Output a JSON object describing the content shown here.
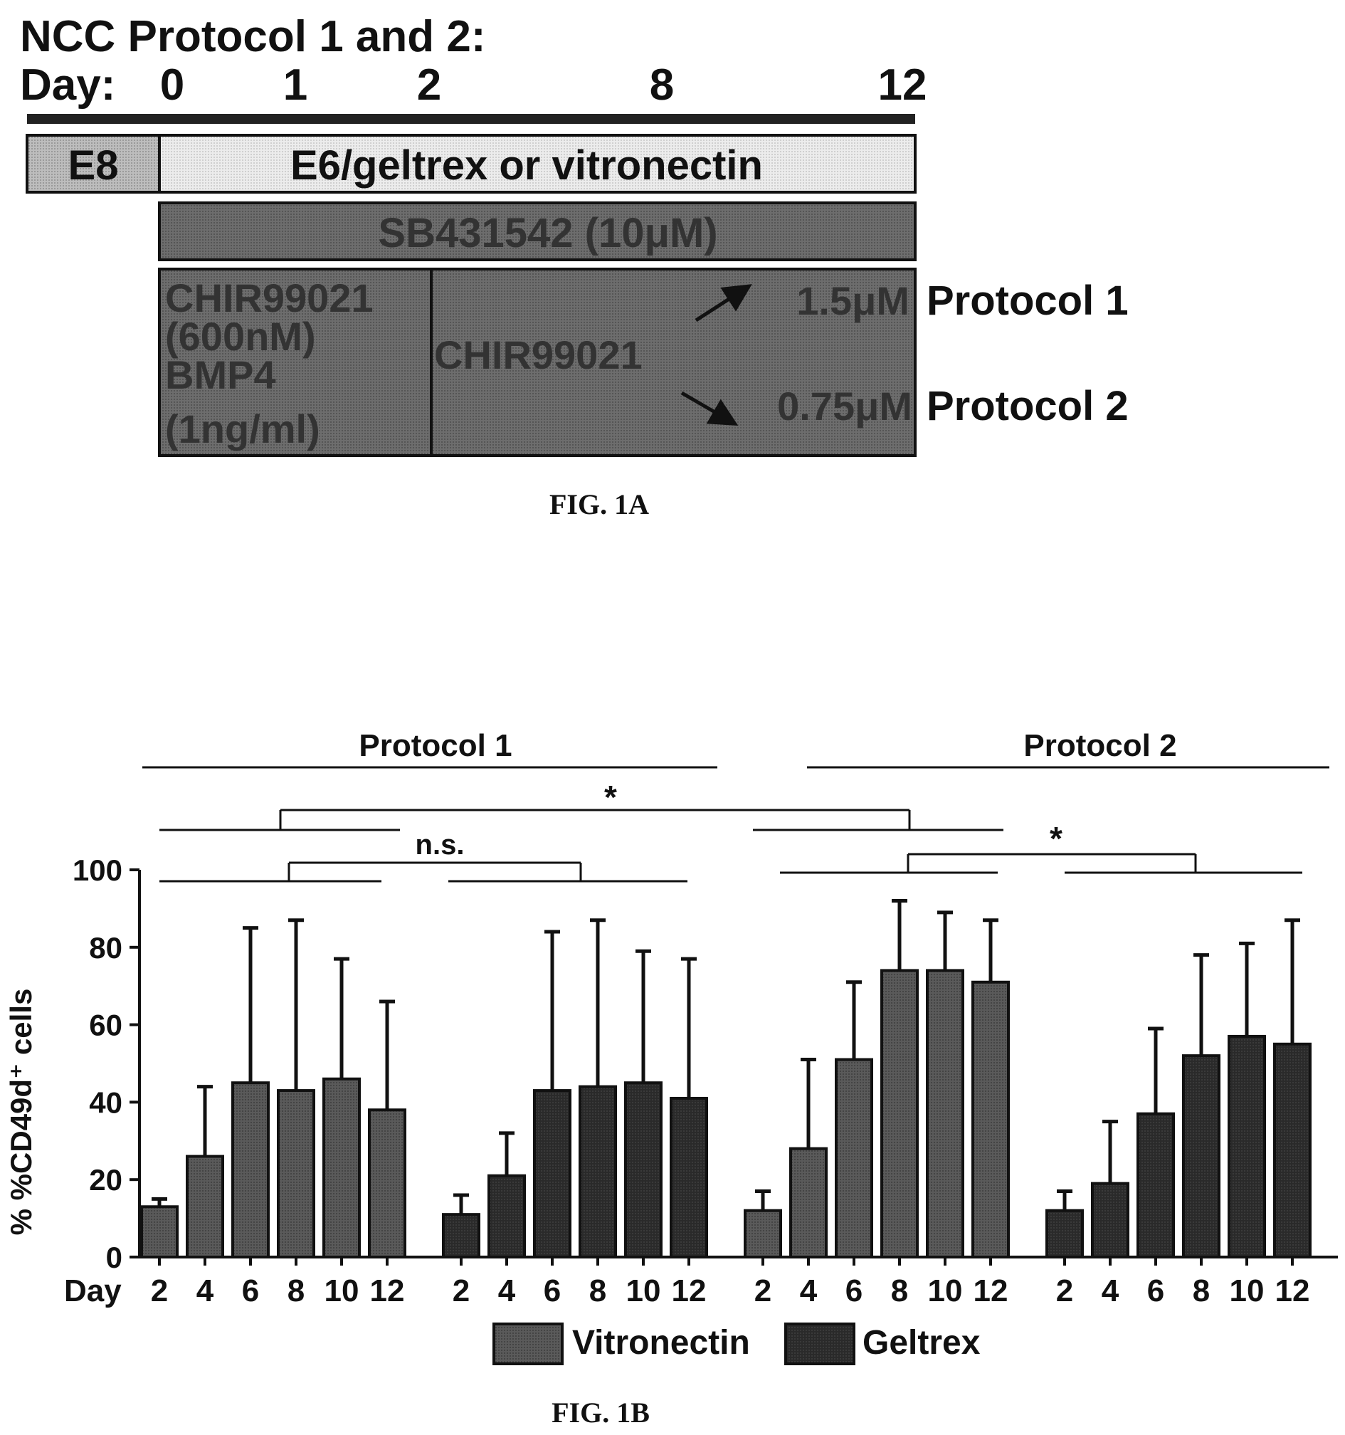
{
  "fig1a": {
    "title": "NCC Protocol 1 and 2:",
    "day_label": "Day:",
    "days": [
      "0",
      "1",
      "2",
      "8",
      "12"
    ],
    "e8_label": "E8",
    "e6_label": "E6/geltrex or vitronectin",
    "sb_label": "SB431542 (10μM)",
    "chir_initial": [
      "CHIR99021",
      "(600nM)",
      "BMP4",
      "(1ng/ml)"
    ],
    "chir_label": "CHIR99021",
    "dose_p1": "1.5μM",
    "dose_p2": "0.75μM",
    "protocol1_label": "Protocol 1",
    "protocol2_label": "Protocol 2",
    "caption": "FIG. 1A"
  },
  "chart_data": {
    "type": "bar",
    "ylabel": "% %CD49d⁺ cells",
    "ylim": [
      0,
      100
    ],
    "yticks": [
      0,
      20,
      40,
      60,
      80,
      100
    ],
    "x_prefix": "Day",
    "groups": [
      {
        "name": "Protocol 1",
        "series": "Vitronectin",
        "days": [
          "2",
          "4",
          "6",
          "8",
          "10",
          "12"
        ],
        "values": [
          13,
          26,
          45,
          43,
          46,
          38
        ],
        "errors": [
          2,
          18,
          40,
          44,
          31,
          28
        ]
      },
      {
        "name": "Protocol 1",
        "series": "Geltrex",
        "days": [
          "2",
          "4",
          "6",
          "8",
          "10",
          "12"
        ],
        "values": [
          11,
          21,
          43,
          44,
          45,
          41
        ],
        "errors": [
          5,
          11,
          41,
          43,
          34,
          36
        ]
      },
      {
        "name": "Protocol 2",
        "series": "Vitronectin",
        "days": [
          "2",
          "4",
          "6",
          "8",
          "10",
          "12"
        ],
        "values": [
          12,
          28,
          51,
          74,
          74,
          71
        ],
        "errors": [
          5,
          23,
          20,
          18,
          15,
          16
        ]
      },
      {
        "name": "Protocol 2",
        "series": "Geltrex",
        "days": [
          "2",
          "4",
          "6",
          "8",
          "10",
          "12"
        ],
        "values": [
          12,
          19,
          37,
          52,
          57,
          55
        ],
        "errors": [
          5,
          16,
          22,
          26,
          24,
          32
        ]
      }
    ],
    "protocol_labels": [
      "Protocol 1",
      "Protocol 2"
    ],
    "significance": [
      "*",
      "n.s.",
      "*"
    ],
    "legend": [
      {
        "name": "Vitronectin",
        "color": "#555555"
      },
      {
        "name": "Geltrex",
        "color": "#222222"
      }
    ],
    "caption": "FIG. 1B"
  }
}
